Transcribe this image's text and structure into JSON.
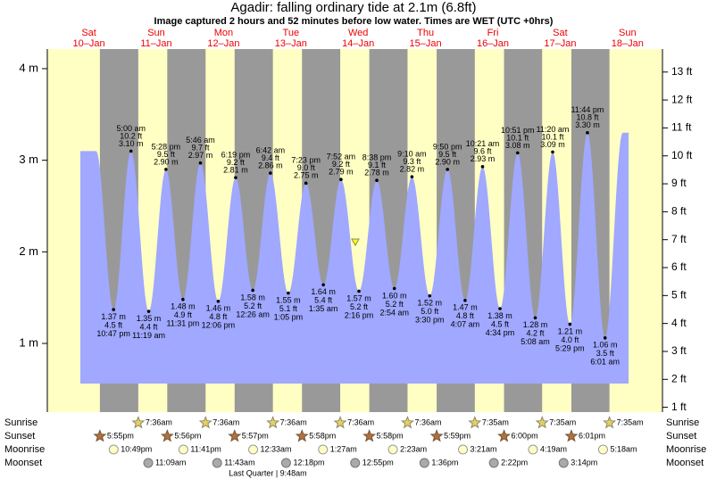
{
  "chart_data": {
    "type": "tide",
    "title": "Agadir: falling  ordinary tide at 2.1m (6.8ft)",
    "current_level_m": 2.1,
    "subtitle": "Image captured 2 hours and 52 minutes before low water. Times are WET (UTC +0hrs)",
    "days": [
      {
        "day": "Sat",
        "date": "10–Jan"
      },
      {
        "day": "Sun",
        "date": "11–Jan"
      },
      {
        "day": "Mon",
        "date": "12–Jan"
      },
      {
        "day": "Tue",
        "date": "13–Jan"
      },
      {
        "day": "Wed",
        "date": "14–Jan"
      },
      {
        "day": "Thu",
        "date": "15–Jan"
      },
      {
        "day": "Fri",
        "date": "16–Jan"
      },
      {
        "day": "Sat",
        "date": "17–Jan"
      },
      {
        "day": "Sun",
        "date": "18–Jan"
      }
    ],
    "ylim": [
      0.26,
      4.21
    ],
    "yticks": [
      {
        "value": 1,
        "label": "1 m"
      },
      {
        "value": 2,
        "label": "2 m"
      },
      {
        "value": 3,
        "label": "3 m"
      },
      {
        "value": 4,
        "label": "4 m"
      }
    ],
    "y2lim": [
      0.86,
      13.81
    ],
    "y2ticks": [
      {
        "value": 1,
        "label": "1 ft"
      },
      {
        "value": 2,
        "label": "2 ft"
      },
      {
        "value": 3,
        "label": "3 ft"
      },
      {
        "value": 4,
        "label": "4 ft"
      },
      {
        "value": 5,
        "label": "5 ft"
      },
      {
        "value": 6,
        "label": "6 ft"
      },
      {
        "value": 7,
        "label": "7 ft"
      },
      {
        "value": 8,
        "label": "8 ft"
      },
      {
        "value": 9,
        "label": "9 ft"
      },
      {
        "value": 10,
        "label": "10 ft"
      },
      {
        "value": 11,
        "label": "11 ft"
      },
      {
        "value": 12,
        "label": "12 ft"
      },
      {
        "value": 13,
        "label": "13 ft"
      }
    ],
    "extremes": [
      {
        "time": "10:47 pm",
        "ft": {
          "value": 4.5,
          "label": "4.5 ft"
        },
        "m": {
          "value": 1.37,
          "label": "1.37 m"
        }
      },
      {
        "time": "5:00 am",
        "ft": {
          "value": 10.2,
          "label": "10.2 ft"
        },
        "m": {
          "value": 3.1,
          "label": "3.10 m"
        }
      },
      {
        "time": "11:19 am",
        "ft": {
          "value": 4.4,
          "label": "4.4 ft"
        },
        "m": {
          "value": 1.35,
          "label": "1.35 m"
        }
      },
      {
        "time": "5:28 pm",
        "ft": {
          "value": 9.5,
          "label": "9.5 ft"
        },
        "m": {
          "value": 2.9,
          "label": "2.90 m"
        }
      },
      {
        "time": "11:31 pm",
        "ft": {
          "value": 4.9,
          "label": "4.9 ft"
        },
        "m": {
          "value": 1.48,
          "label": "1.48 m"
        }
      },
      {
        "time": "5:46 am",
        "ft": {
          "value": 9.7,
          "label": "9.7 ft"
        },
        "m": {
          "value": 2.97,
          "label": "2.97 m"
        }
      },
      {
        "time": "12:06 pm",
        "ft": {
          "value": 4.8,
          "label": "4.8 ft"
        },
        "m": {
          "value": 1.46,
          "label": "1.46 m"
        }
      },
      {
        "time": "6:19 pm",
        "ft": {
          "value": 9.2,
          "label": "9.2 ft"
        },
        "m": {
          "value": 2.81,
          "label": "2.81 m"
        }
      },
      {
        "time": "12:26 am",
        "ft": {
          "value": 5.2,
          "label": "5.2 ft"
        },
        "m": {
          "value": 1.58,
          "label": "1.58 m"
        }
      },
      {
        "time": "6:42 am",
        "ft": {
          "value": 9.4,
          "label": "9.4 ft"
        },
        "m": {
          "value": 2.86,
          "label": "2.86 m"
        }
      },
      {
        "time": "1:05 pm",
        "ft": {
          "value": 5.1,
          "label": "5.1 ft"
        },
        "m": {
          "value": 1.55,
          "label": "1.55 m"
        }
      },
      {
        "time": "7:23 pm",
        "ft": {
          "value": 9.0,
          "label": "9.0 ft"
        },
        "m": {
          "value": 2.75,
          "label": "2.75 m"
        }
      },
      {
        "time": "1:35 am",
        "ft": {
          "value": 5.4,
          "label": "5.4 ft"
        },
        "m": {
          "value": 1.64,
          "label": "1.64 m"
        }
      },
      {
        "time": "7:52 am",
        "ft": {
          "value": 9.2,
          "label": "9.2 ft"
        },
        "m": {
          "value": 2.79,
          "label": "2.79 m"
        }
      },
      {
        "time": "2:16 pm",
        "ft": {
          "value": 5.2,
          "label": "5.2 ft"
        },
        "m": {
          "value": 1.57,
          "label": "1.57 m"
        }
      },
      {
        "time": "8:38 pm",
        "ft": {
          "value": 9.1,
          "label": "9.1 ft"
        },
        "m": {
          "value": 2.78,
          "label": "2.78 m"
        }
      },
      {
        "time": "2:54 am",
        "ft": {
          "value": 5.2,
          "label": "5.2 ft"
        },
        "m": {
          "value": 1.6,
          "label": "1.60 m"
        }
      },
      {
        "time": "9:10 am",
        "ft": {
          "value": 9.3,
          "label": "9.3 ft"
        },
        "m": {
          "value": 2.82,
          "label": "2.82 m"
        }
      },
      {
        "time": "3:30 pm",
        "ft": {
          "value": 5.0,
          "label": "5.0 ft"
        },
        "m": {
          "value": 1.52,
          "label": "1.52 m"
        }
      },
      {
        "time": "9:50 pm",
        "ft": {
          "value": 9.5,
          "label": "9.5 ft"
        },
        "m": {
          "value": 2.9,
          "label": "2.90 m"
        }
      },
      {
        "time": "4:07 am",
        "ft": {
          "value": 4.8,
          "label": "4.8 ft"
        },
        "m": {
          "value": 1.47,
          "label": "1.47 m"
        }
      },
      {
        "time": "10:21 am",
        "ft": {
          "value": 9.6,
          "label": "9.6 ft"
        },
        "m": {
          "value": 2.93,
          "label": "2.93 m"
        }
      },
      {
        "time": "4:34 pm",
        "ft": {
          "value": 4.5,
          "label": "4.5 ft"
        },
        "m": {
          "value": 1.38,
          "label": "1.38 m"
        }
      },
      {
        "time": "10:51 pm",
        "ft": {
          "value": 10.1,
          "label": "10.1 ft"
        },
        "m": {
          "value": 3.08,
          "label": "3.08 m"
        }
      },
      {
        "time": "5:08 am",
        "ft": {
          "value": 4.2,
          "label": "4.2 ft"
        },
        "m": {
          "value": 1.28,
          "label": "1.28 m"
        }
      },
      {
        "time": "11:20 am",
        "ft": {
          "value": 10.1,
          "label": "10.1 ft"
        },
        "m": {
          "value": 3.09,
          "label": "3.09 m"
        }
      },
      {
        "time": "5:29 pm",
        "ft": {
          "value": 4.0,
          "label": "4.0 ft"
        },
        "m": {
          "value": 1.21,
          "label": "1.21 m"
        }
      },
      {
        "time": "11:44 pm",
        "ft": {
          "value": 10.8,
          "label": "10.8 ft"
        },
        "m": {
          "value": 3.3,
          "label": "3.30 m"
        }
      },
      {
        "time": "6:01 am",
        "ft": {
          "value": 3.5,
          "label": "3.5 ft"
        },
        "m": {
          "value": 1.06,
          "label": "1.06 m"
        }
      }
    ],
    "rows": [
      {
        "name": "Sunrise",
        "times": [
          null,
          "7:36am",
          "7:36am",
          "7:36am",
          "7:36am",
          "7:36am",
          "7:35am",
          "7:35am",
          "7:35am"
        ]
      },
      {
        "name": "Sunset",
        "times": [
          "5:55pm",
          "5:56pm",
          "5:57pm",
          "5:58pm",
          "5:58pm",
          "5:59pm",
          "6:00pm",
          "6:01pm",
          null
        ]
      },
      {
        "name": "Moonrise",
        "times": [
          "10:49pm",
          "11:41pm",
          null,
          "12:33am",
          "1:27am",
          "2:23am",
          "3:21am",
          "4:19am",
          "5:18am"
        ]
      },
      {
        "name": "Moonset",
        "times": [
          null,
          "11:09am",
          "11:43am",
          "12:18pm",
          "12:55pm",
          "1:36pm",
          "2:22pm",
          "3:14pm",
          null
        ]
      }
    ],
    "moon_phase": "Last Quarter | 9:48am"
  }
}
